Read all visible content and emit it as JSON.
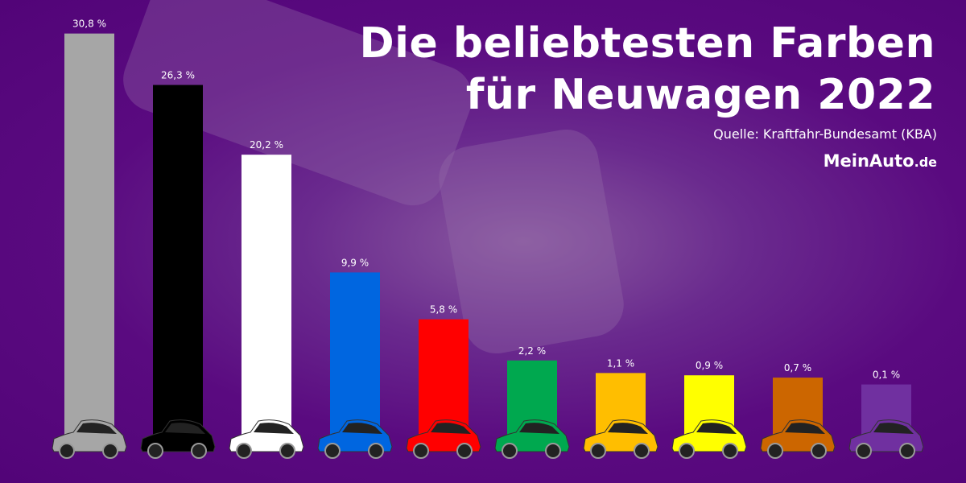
{
  "header": {
    "title_line1": "Die beliebtesten Farben",
    "title_line2": "für Neuwagen 2022",
    "source": "Quelle: Kraftfahr-Bundesamt (KBA)",
    "logo_main": "MeinAuto",
    "logo_tld": ".de"
  },
  "chart_data": {
    "type": "bar",
    "title": "Die beliebtesten Farben für Neuwagen 2022",
    "unit": "%",
    "labels": [
      "30,8 %",
      "26,3 %",
      "20,2 %",
      "9,9 %",
      "5,8 %",
      "2,2 %",
      "1,1 %",
      "0,9 %",
      "0,7 %",
      "0,1 %"
    ],
    "values": [
      30.8,
      26.3,
      20.2,
      9.9,
      5.8,
      2.2,
      1.1,
      0.9,
      0.7,
      0.1
    ],
    "colors": [
      "#a6a6a6",
      "#000000",
      "#ffffff",
      "#0066e0",
      "#ff0000",
      "#00a84f",
      "#ffbe00",
      "#ffff00",
      "#cc6600",
      "#7030a0"
    ],
    "grid": false,
    "legend": "none"
  }
}
